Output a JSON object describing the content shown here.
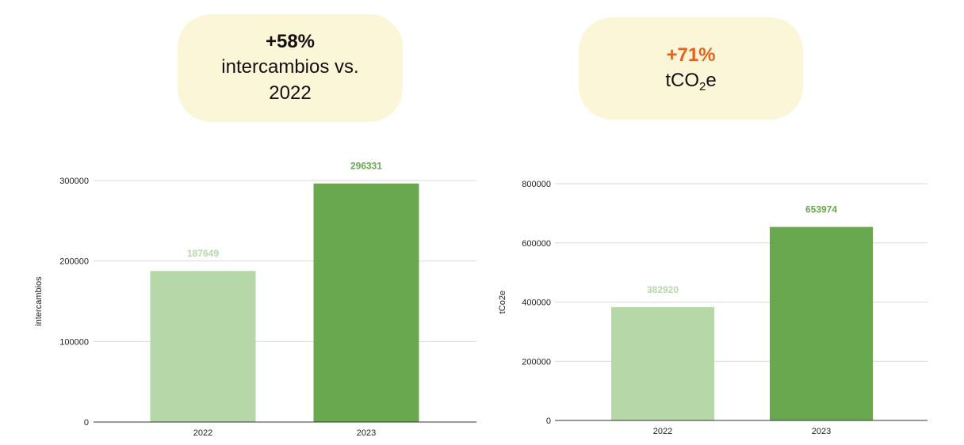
{
  "callouts": {
    "left": {
      "headline": "+58%",
      "line1": "intercambios vs. 2022",
      "color": "#111111"
    },
    "right": {
      "headline": "+71%",
      "line1_pre": "tCO",
      "line1_sub": "2",
      "line1_post": "e",
      "color": "#e8601c"
    }
  },
  "colors": {
    "light": "#b6d7a8",
    "dark": "#6aa84f",
    "grid": "#d9d9d9",
    "axis": "#333333"
  },
  "chart_data": [
    {
      "type": "bar",
      "categories": [
        "2022",
        "2023"
      ],
      "values": [
        187649,
        296331
      ],
      "data_labels": [
        "187649",
        "296331"
      ],
      "bar_colors": [
        "#b6d7a8",
        "#6aa84f"
      ],
      "ylabel": "intercambios",
      "xlabel": "",
      "ylim": [
        0,
        300000
      ],
      "yticks": [
        0,
        100000,
        200000,
        300000
      ],
      "grid": true,
      "legend": "none"
    },
    {
      "type": "bar",
      "categories": [
        "2022",
        "2023"
      ],
      "values": [
        382920,
        653974
      ],
      "data_labels": [
        "382920",
        "653974"
      ],
      "bar_colors": [
        "#b6d7a8",
        "#6aa84f"
      ],
      "ylabel": "tCo2e",
      "xlabel": "",
      "ylim": [
        0,
        800000
      ],
      "yticks": [
        0,
        200000,
        400000,
        600000,
        800000
      ],
      "grid": true,
      "legend": "none"
    }
  ]
}
